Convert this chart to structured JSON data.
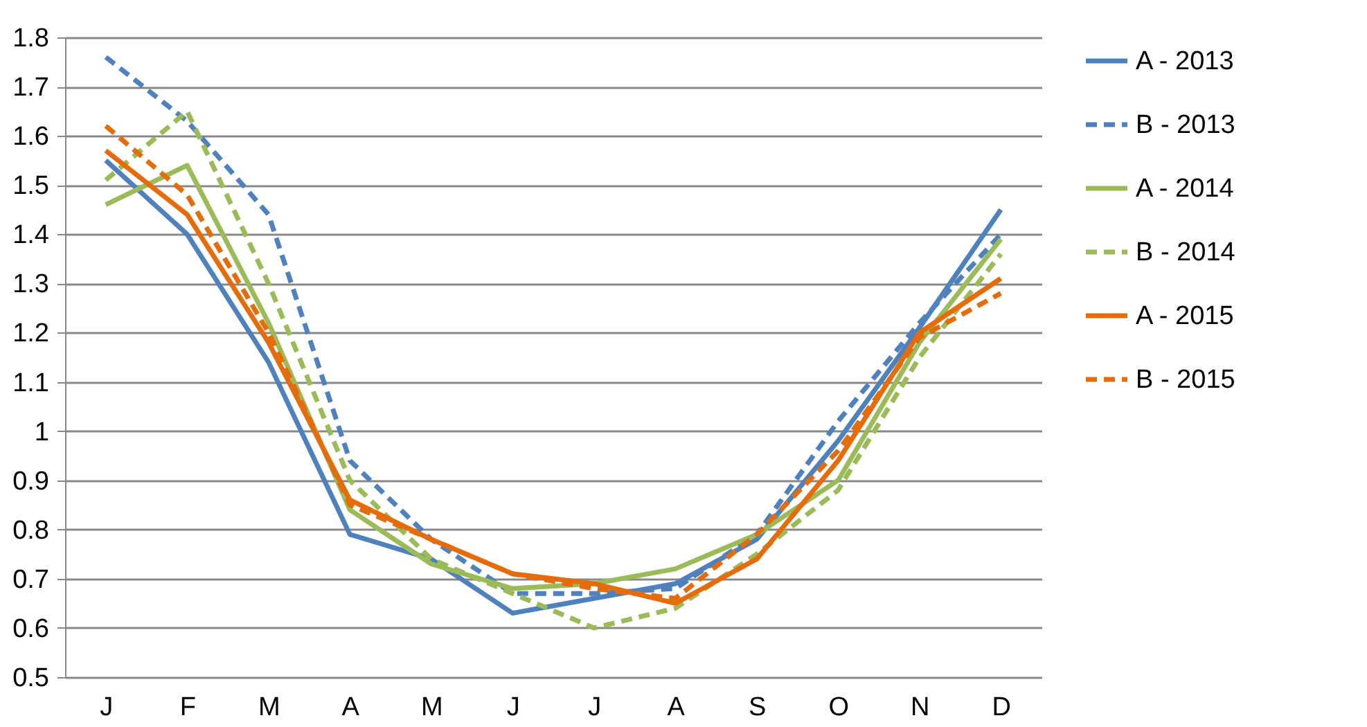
{
  "chart_data": {
    "type": "line",
    "categories": [
      "J",
      "F",
      "M",
      "A",
      "M",
      "J",
      "J",
      "A",
      "S",
      "O",
      "N",
      "D"
    ],
    "ylim": [
      0.5,
      1.8
    ],
    "yticks": [
      0.5,
      0.6,
      0.7,
      0.8,
      0.9,
      1,
      1.1,
      1.2,
      1.3,
      1.4,
      1.5,
      1.6,
      1.7,
      1.8
    ],
    "grid": "y",
    "legend": "right",
    "marker": "none",
    "series": [
      {
        "name": "A - 2013",
        "color": "#4f81bd",
        "line_style": "solid",
        "values": [
          1.55,
          1.4,
          1.14,
          0.79,
          0.74,
          0.63,
          0.66,
          0.69,
          0.78,
          0.98,
          1.21,
          1.45
        ]
      },
      {
        "name": "B - 2013",
        "color": "#4f81bd",
        "line_style": "dashed",
        "values": [
          1.76,
          1.63,
          1.44,
          0.94,
          0.78,
          0.67,
          0.67,
          0.68,
          0.79,
          1.02,
          1.22,
          1.4
        ]
      },
      {
        "name": "A - 2014",
        "color": "#9bbb59",
        "line_style": "solid",
        "values": [
          1.46,
          1.54,
          1.22,
          0.84,
          0.73,
          0.68,
          0.69,
          0.72,
          0.79,
          0.9,
          1.18,
          1.39
        ]
      },
      {
        "name": "B - 2014",
        "color": "#9bbb59",
        "line_style": "dashed",
        "values": [
          1.51,
          1.65,
          1.3,
          0.9,
          0.74,
          0.67,
          0.6,
          0.64,
          0.75,
          0.88,
          1.15,
          1.36
        ]
      },
      {
        "name": "A - 2015",
        "color": "#e46c0a",
        "line_style": "solid",
        "values": [
          1.57,
          1.44,
          1.18,
          0.86,
          0.78,
          0.71,
          0.69,
          0.65,
          0.74,
          0.94,
          1.2,
          1.31
        ]
      },
      {
        "name": "B - 2015",
        "color": "#e46c0a",
        "line_style": "dashed",
        "values": [
          1.62,
          1.48,
          1.2,
          0.85,
          0.78,
          0.71,
          0.68,
          0.66,
          0.79,
          0.96,
          1.19,
          1.28
        ]
      }
    ]
  }
}
